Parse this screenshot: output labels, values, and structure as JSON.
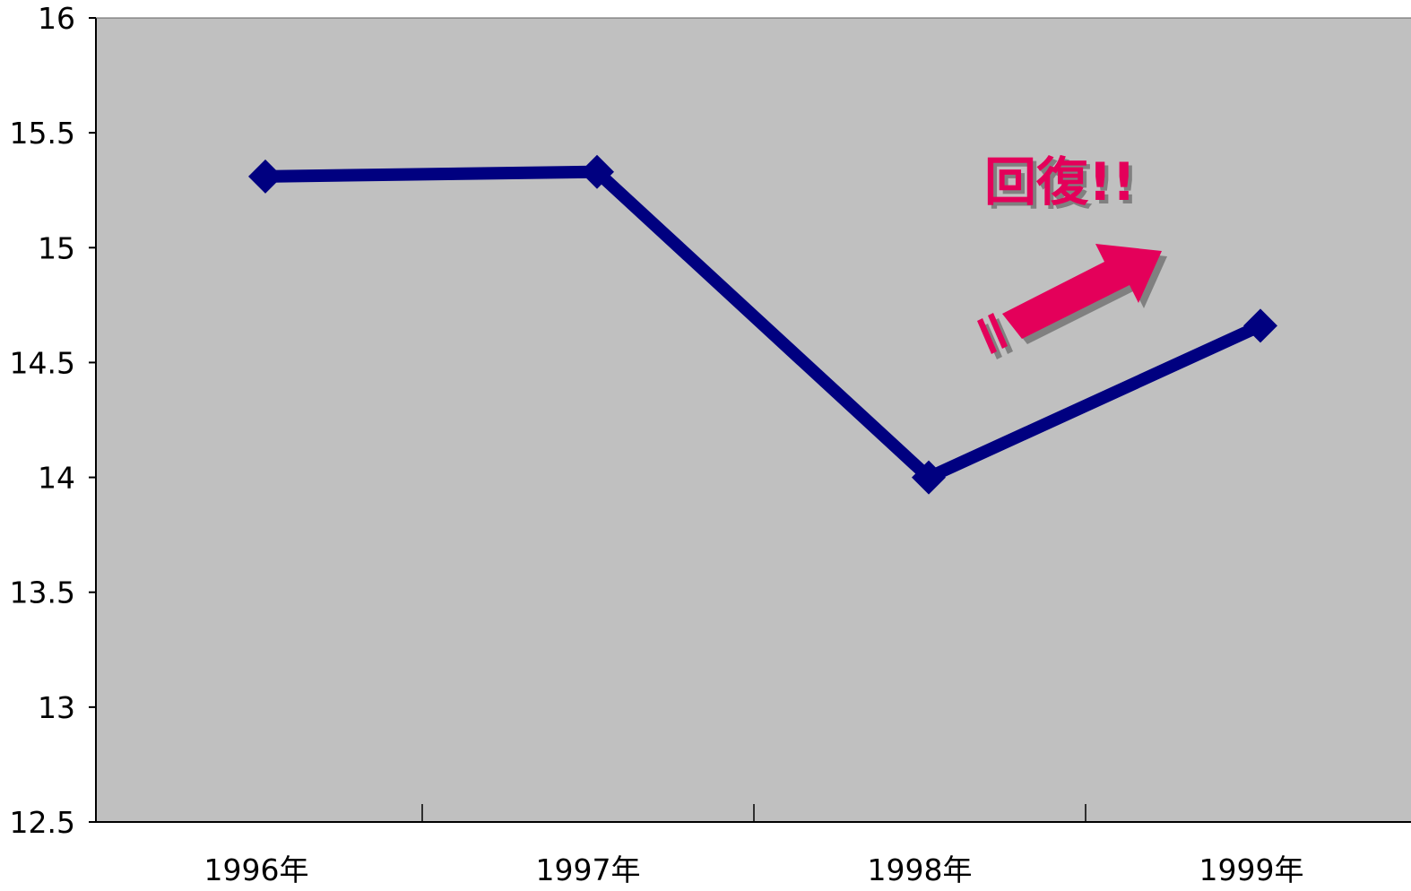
{
  "chart_data": {
    "type": "line",
    "categories": [
      "1996年",
      "1997年",
      "1998年",
      "1999年"
    ],
    "series": [
      {
        "values": [
          15.31,
          15.33,
          14.0,
          14.66
        ],
        "color": "#000080",
        "marker": "diamond"
      }
    ],
    "title": "",
    "xlabel": "",
    "ylabel": "",
    "ylim": [
      12.5,
      16
    ],
    "yticks": [
      "16",
      "15.5",
      "15",
      "14.5",
      "14",
      "13.5",
      "13",
      "12.5"
    ],
    "grid": false,
    "legend": "none",
    "plot_background": "#c0c0c0",
    "annotations": [
      {
        "text": "回復!!",
        "color": "#e4005a",
        "shadow_color": "#808080",
        "arrow_icon": "up-right-arrow-icon"
      }
    ]
  }
}
